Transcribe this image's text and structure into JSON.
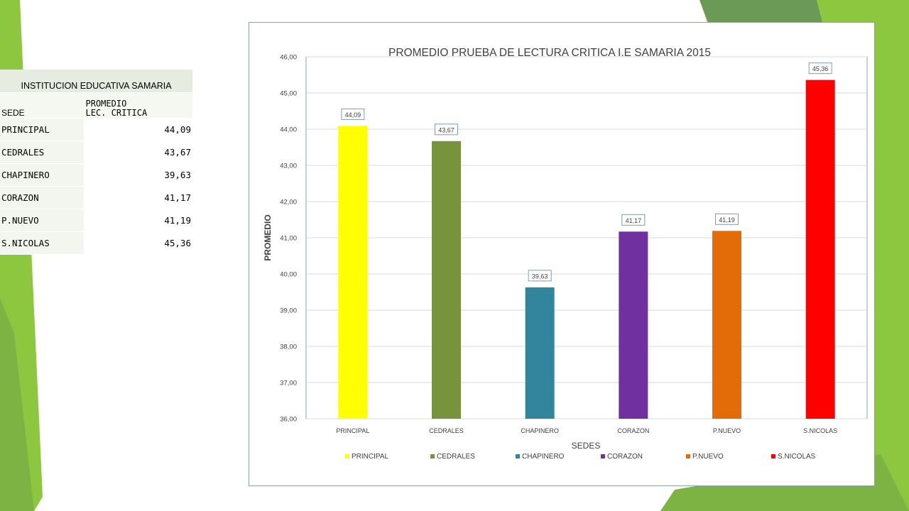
{
  "table": {
    "title": "INSTITUCION EDUCATIVA SAMARIA",
    "header_sede": "SEDE",
    "header_promedio_line1": "PROMEDIO",
    "header_promedio_line2": "LEC. CRITICA",
    "rows": [
      {
        "sede": "PRINCIPAL",
        "valor": "44,09"
      },
      {
        "sede": "CEDRALES",
        "valor": "43,67"
      },
      {
        "sede": "CHAPINERO",
        "valor": "39,63"
      },
      {
        "sede": "CORAZON",
        "valor": "41,17"
      },
      {
        "sede": "P.NUEVO",
        "valor": "41,19"
      },
      {
        "sede": "S.NICOLAS",
        "valor": "45,36"
      }
    ]
  },
  "chart_data": {
    "type": "bar",
    "title": "PROMEDIO PRUEBA DE LECTURA CRITICA I.E SAMARIA 2015",
    "xlabel": "SEDES",
    "ylabel": "PROMEDIO",
    "categories": [
      "PRINCIPAL",
      "CEDRALES",
      "CHAPINERO",
      "CORAZON",
      "P.NUEVO",
      "S.NICOLAS"
    ],
    "values": [
      44.09,
      43.67,
      39.63,
      41.17,
      41.19,
      45.36
    ],
    "value_labels": [
      "44,09",
      "43,67",
      "39,63",
      "41,17",
      "41,19",
      "45,36"
    ],
    "colors": [
      "#ffff00",
      "#77933c",
      "#31859c",
      "#7030a0",
      "#e36c09",
      "#ff0000"
    ],
    "ylim": [
      36,
      46
    ],
    "ytick_labels": [
      "36,00",
      "37,00",
      "38,00",
      "39,00",
      "40,00",
      "41,00",
      "42,00",
      "43,00",
      "44,00",
      "45,00",
      "46,00"
    ],
    "grid": true,
    "legend_position": "bottom"
  }
}
